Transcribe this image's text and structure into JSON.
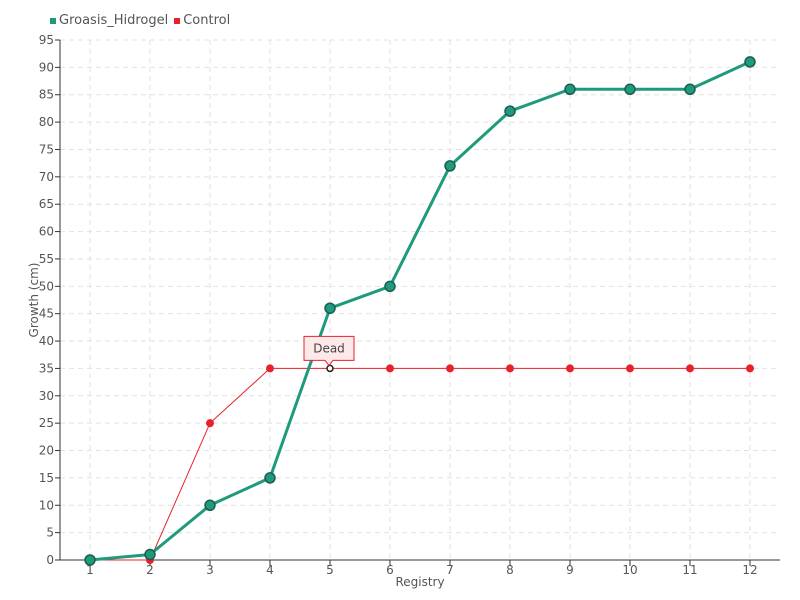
{
  "chart_data": {
    "type": "line",
    "title": "",
    "xlabel": "Registry",
    "ylabel": "Growth (cm)",
    "categories": [
      "1",
      "2",
      "3",
      "4",
      "5",
      "6",
      "7",
      "8",
      "9",
      "10",
      "11",
      "12"
    ],
    "ylim": [
      0,
      95
    ],
    "yticks": [
      0,
      5,
      10,
      15,
      20,
      25,
      30,
      35,
      40,
      45,
      50,
      55,
      60,
      65,
      70,
      75,
      80,
      85,
      90,
      95
    ],
    "grid": true,
    "legend": "top-left",
    "series": [
      {
        "name": "Groasis_Hidrogel",
        "color": "#1f9a7c",
        "values": [
          0,
          1,
          10,
          15,
          46,
          50,
          72,
          82,
          86,
          86,
          86,
          91
        ]
      },
      {
        "name": "Control",
        "color": "#e8222c",
        "values": [
          0,
          0,
          25,
          35,
          35,
          35,
          35,
          35,
          35,
          35,
          35,
          35
        ]
      }
    ],
    "annotations": [
      {
        "series": "Control",
        "category": "5",
        "value": 35,
        "text": "Dead"
      }
    ]
  }
}
